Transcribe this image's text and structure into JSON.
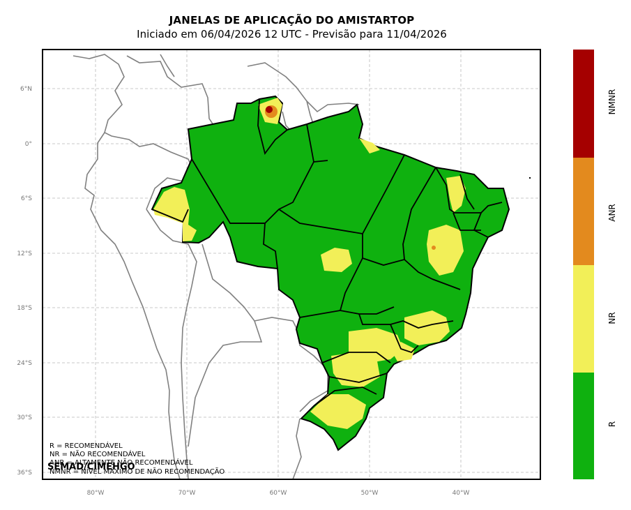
{
  "title": "JANELAS DE APLICAÇÃO DO AMISTARTOP",
  "subtitle": "Iniciado em 06/04/2026 12 UTC - Previsão para 11/04/2026",
  "lat_ticks": [
    "6°N",
    "0°",
    "6°S",
    "12°S",
    "18°S",
    "24°S",
    "30°S",
    "36°S"
  ],
  "lon_ticks": [
    "80°W",
    "70°W",
    "60°W",
    "50°W",
    "40°W"
  ],
  "legend_lines": [
    "R = RECOMENDÁVEL",
    "NR = NÃO RECOMENDÁVEL",
    "ANR = ALTAMENTE NÃO RECOMENDÁVEL",
    "NMNR = NÍVEL MÁXIMO DE NÃO RECOMENDAÇÃO"
  ],
  "credit": "SEMAD/CIMEHGO",
  "colorbar": [
    {
      "label": "NMNR",
      "color": "#a50000"
    },
    {
      "label": "ANR",
      "color": "#e38a1e"
    },
    {
      "label": "NR",
      "color": "#f2ef58"
    },
    {
      "label": "R",
      "color": "#0fb10f"
    }
  ],
  "colors": {
    "R": "#0fb10f",
    "NR": "#f2ef58",
    "ANR": "#e38a1e",
    "NMNR": "#a50000"
  }
}
